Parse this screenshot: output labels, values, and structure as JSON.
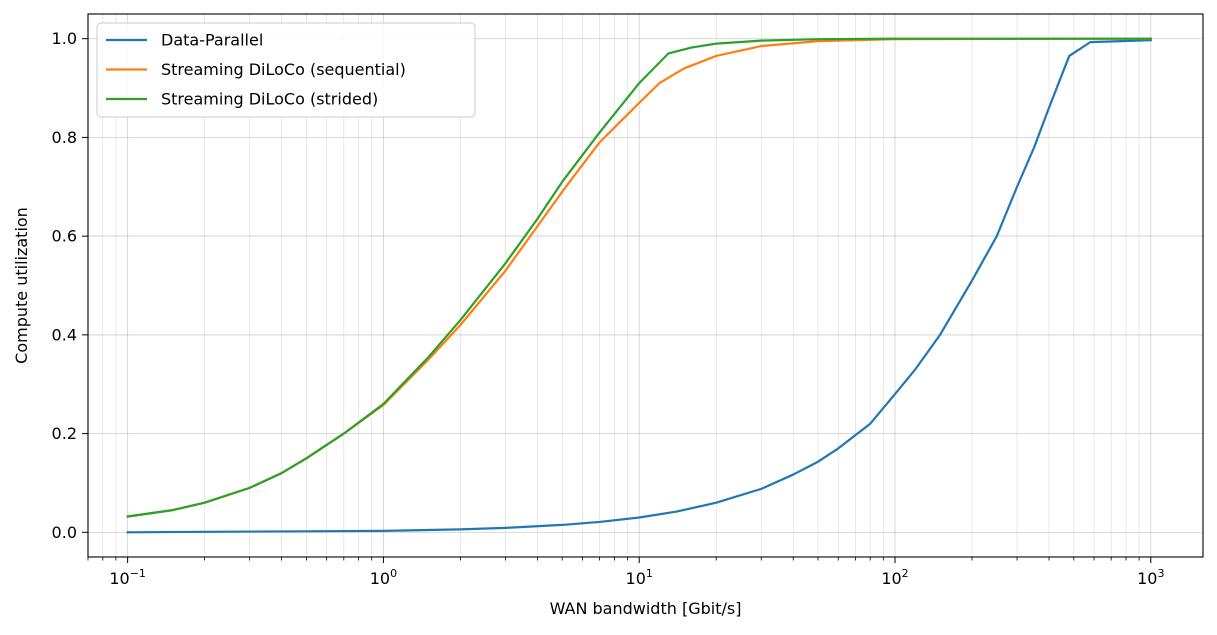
{
  "chart_data": {
    "type": "line",
    "title": "",
    "xlabel": "WAN bandwidth [Gbit/s]",
    "ylabel": "Compute utilization",
    "xscale": "log",
    "xlim": [
      0.07,
      1600
    ],
    "ylim": [
      -0.05,
      1.05
    ],
    "grid": true,
    "legend_position": "top-left",
    "x_ticks": [
      {
        "value": 0.1,
        "base": "10",
        "exp": "−1"
      },
      {
        "value": 1,
        "base": "10",
        "exp": "0"
      },
      {
        "value": 10,
        "base": "10",
        "exp": "1"
      },
      {
        "value": 100,
        "base": "10",
        "exp": "2"
      },
      {
        "value": 1000,
        "base": "10",
        "exp": "3"
      }
    ],
    "y_ticks": [
      {
        "value": 0.0,
        "label": "0.0"
      },
      {
        "value": 0.2,
        "label": "0.2"
      },
      {
        "value": 0.4,
        "label": "0.4"
      },
      {
        "value": 0.6,
        "label": "0.6"
      },
      {
        "value": 0.8,
        "label": "0.8"
      },
      {
        "value": 1.0,
        "label": "1.0"
      }
    ],
    "series": [
      {
        "name": "Data-Parallel",
        "color": "#1f77b4",
        "points": [
          [
            0.1,
            0.0
          ],
          [
            0.2,
            0.001
          ],
          [
            0.5,
            0.002
          ],
          [
            1,
            0.003
          ],
          [
            2,
            0.006
          ],
          [
            3,
            0.009
          ],
          [
            5,
            0.015
          ],
          [
            7,
            0.021
          ],
          [
            10,
            0.03
          ],
          [
            14,
            0.042
          ],
          [
            20,
            0.06
          ],
          [
            30,
            0.088
          ],
          [
            40,
            0.117
          ],
          [
            50,
            0.143
          ],
          [
            60,
            0.17
          ],
          [
            80,
            0.22
          ],
          [
            100,
            0.28
          ],
          [
            120,
            0.33
          ],
          [
            150,
            0.4
          ],
          [
            200,
            0.51
          ],
          [
            250,
            0.6
          ],
          [
            300,
            0.7
          ],
          [
            350,
            0.78
          ],
          [
            400,
            0.86
          ],
          [
            480,
            0.965
          ],
          [
            580,
            0.993
          ],
          [
            1000,
            0.997
          ]
        ]
      },
      {
        "name": "Streaming DiLoCo (sequential)",
        "color": "#ff7f0e",
        "points": [
          [
            0.1,
            0.032
          ],
          [
            0.15,
            0.045
          ],
          [
            0.2,
            0.06
          ],
          [
            0.3,
            0.09
          ],
          [
            0.4,
            0.12
          ],
          [
            0.5,
            0.15
          ],
          [
            0.7,
            0.2
          ],
          [
            1,
            0.258
          ],
          [
            1.5,
            0.35
          ],
          [
            2,
            0.42
          ],
          [
            3,
            0.53
          ],
          [
            4,
            0.62
          ],
          [
            5,
            0.69
          ],
          [
            7,
            0.79
          ],
          [
            10,
            0.87
          ],
          [
            12,
            0.91
          ],
          [
            15,
            0.94
          ],
          [
            20,
            0.965
          ],
          [
            30,
            0.985
          ],
          [
            50,
            0.995
          ],
          [
            100,
            0.999
          ],
          [
            1000,
            1.0
          ]
        ]
      },
      {
        "name": "Streaming DiLoCo (strided)",
        "color": "#2ca02c",
        "points": [
          [
            0.1,
            0.032
          ],
          [
            0.15,
            0.045
          ],
          [
            0.2,
            0.06
          ],
          [
            0.3,
            0.09
          ],
          [
            0.4,
            0.12
          ],
          [
            0.5,
            0.15
          ],
          [
            0.7,
            0.2
          ],
          [
            1,
            0.26
          ],
          [
            1.5,
            0.355
          ],
          [
            2,
            0.43
          ],
          [
            3,
            0.545
          ],
          [
            4,
            0.635
          ],
          [
            5,
            0.71
          ],
          [
            7,
            0.81
          ],
          [
            10,
            0.91
          ],
          [
            13,
            0.97
          ],
          [
            16,
            0.982
          ],
          [
            20,
            0.99
          ],
          [
            30,
            0.996
          ],
          [
            50,
            0.999
          ],
          [
            100,
            1.0
          ],
          [
            1000,
            1.0
          ]
        ]
      }
    ]
  }
}
